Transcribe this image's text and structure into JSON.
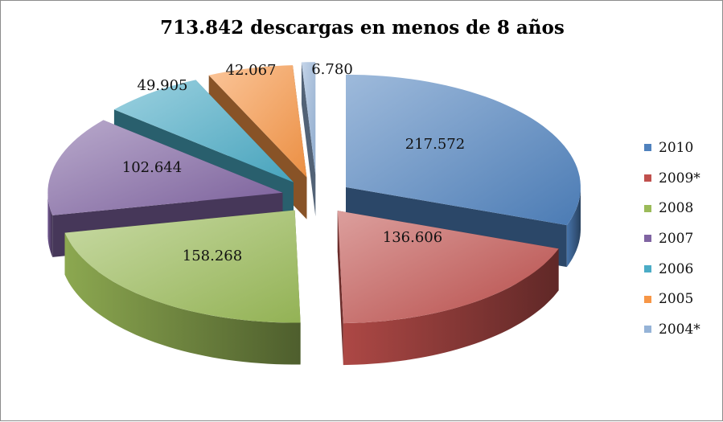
{
  "chart_data": {
    "type": "pie",
    "title": "713.842 descargas en menos de 8 años",
    "slices": [
      {
        "label": "2010",
        "value": 217572,
        "display": "217.572",
        "color": "#4f81bd"
      },
      {
        "label": "2009*",
        "value": 136606,
        "display": "136.606",
        "color": "#c0504d"
      },
      {
        "label": "2008",
        "value": 158268,
        "display": "158.268",
        "color": "#9bbb59"
      },
      {
        "label": "2007",
        "value": 102644,
        "display": "102.644",
        "color": "#8064a2"
      },
      {
        "label": "2006",
        "value": 49905,
        "display": "49.905",
        "color": "#4bacc6"
      },
      {
        "label": "2005",
        "value": 42067,
        "display": "42.067",
        "color": "#f79646"
      },
      {
        "label": "2004*",
        "value": 6780,
        "display": "6.780",
        "color": "#95b3d7"
      }
    ],
    "legend": "right",
    "style": "3d-exploded"
  }
}
